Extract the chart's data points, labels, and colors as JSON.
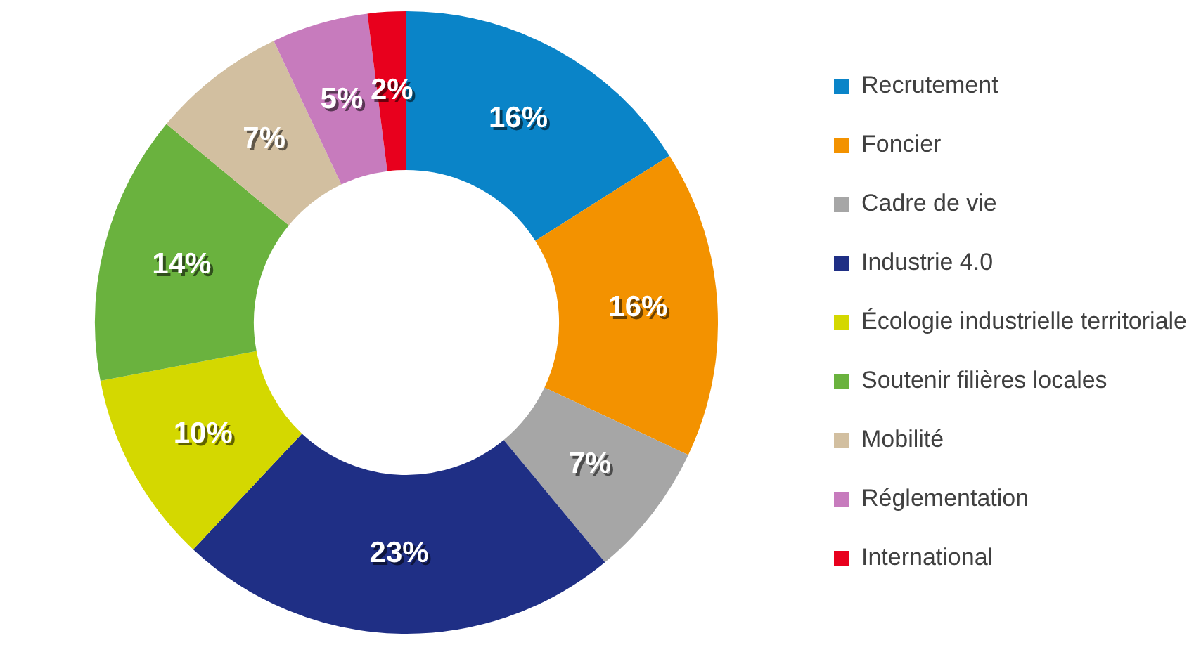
{
  "chart_data": {
    "type": "donut",
    "categories": [
      "Recrutement",
      "Foncier",
      "Cadre de vie",
      "Industrie 4.0",
      "Écologie industrielle territoriale",
      "Soutenir filières locales",
      "Mobilité",
      "Réglementation",
      "International"
    ],
    "values": [
      16,
      16,
      7,
      23,
      10,
      14,
      7,
      5,
      2
    ],
    "value_labels": [
      "16%",
      "16%",
      "7%",
      "23%",
      "10%",
      "14%",
      "7%",
      "5%",
      "2%"
    ],
    "colors": [
      "#0a84c8",
      "#f39200",
      "#a6a6a6",
      "#1f2f85",
      "#d4d800",
      "#6ab23e",
      "#d2bfa0",
      "#c77bbd",
      "#e8001d"
    ],
    "legend": "right"
  }
}
